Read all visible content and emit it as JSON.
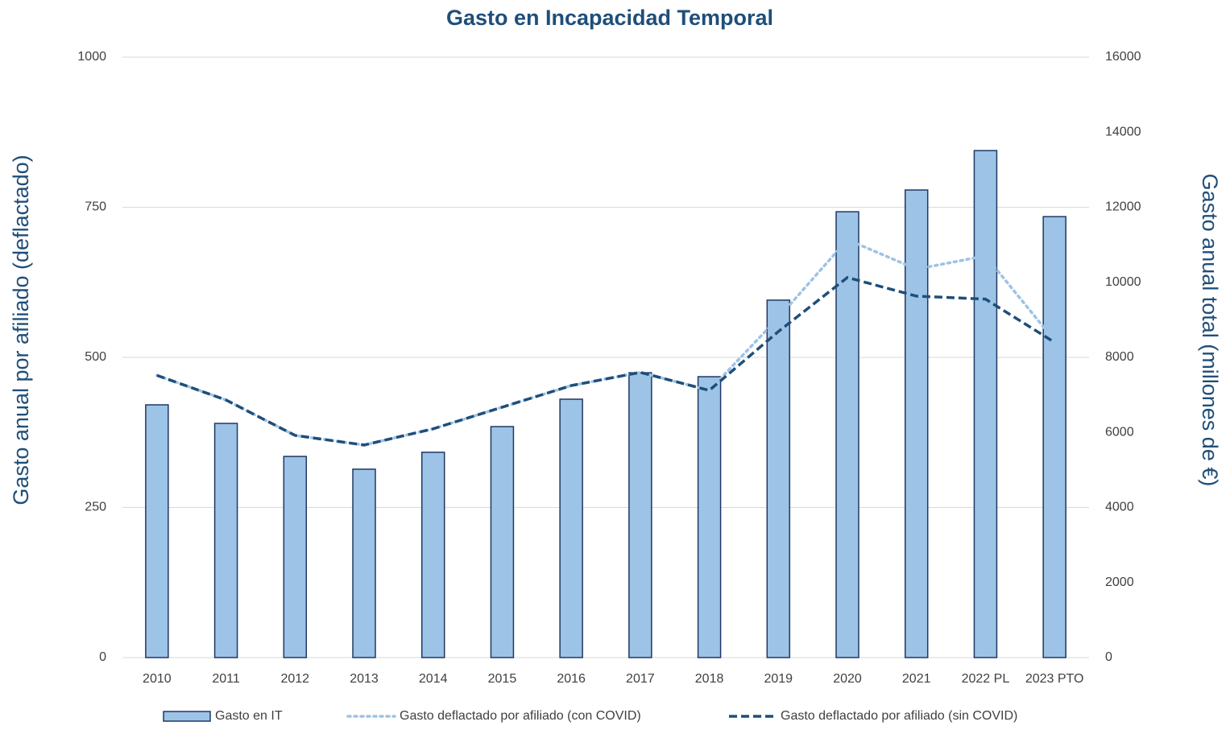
{
  "chart_data": {
    "type": "bar_line",
    "title": "Gasto en Incapacidad Temporal",
    "y_label": "Gasto anual por afiliado (deflactado)",
    "y2_label": "Gasto anual total (millones de €)",
    "categories": [
      "2010",
      "2011",
      "2012",
      "2013",
      "2014",
      "2015",
      "2016",
      "2017",
      "2018",
      "2019",
      "2020",
      "2021",
      "2022 PL",
      "2023 PTO"
    ],
    "series": [
      {
        "name": "Gasto en IT",
        "type": "bar",
        "axis": "y2",
        "color": "#9dc3e6",
        "edge": "#1f3864",
        "values": [
          6735,
          6240,
          5360,
          5020,
          5470,
          6155,
          6885,
          7590,
          7485,
          9525,
          11880,
          12460,
          13510,
          11750
        ]
      },
      {
        "name": "Gasto deflactado por afiliado (con COVID)",
        "type": "line",
        "style": "dotted",
        "color": "#9dc3e6",
        "values": [
          470,
          429,
          370,
          354,
          381,
          417,
          453,
          475,
          445,
          566,
          696,
          647,
          669,
          528
        ]
      },
      {
        "name": "Gasto deflactado por afiliado (sin COVID)",
        "type": "line",
        "style": "dashed",
        "color": "#1f4e79",
        "values": [
          470,
          429,
          370,
          354,
          381,
          417,
          453,
          475,
          445,
          543,
          633,
          602,
          597,
          525
        ]
      }
    ],
    "ylim": [
      0,
      1000
    ],
    "yticks": [
      0,
      250,
      500,
      750,
      1000
    ],
    "y2lim": [
      0,
      16000
    ],
    "y2ticks": [
      0,
      2000,
      4000,
      6000,
      8000,
      10000,
      12000,
      14000,
      16000
    ],
    "grid": true,
    "legend": "bottom"
  }
}
